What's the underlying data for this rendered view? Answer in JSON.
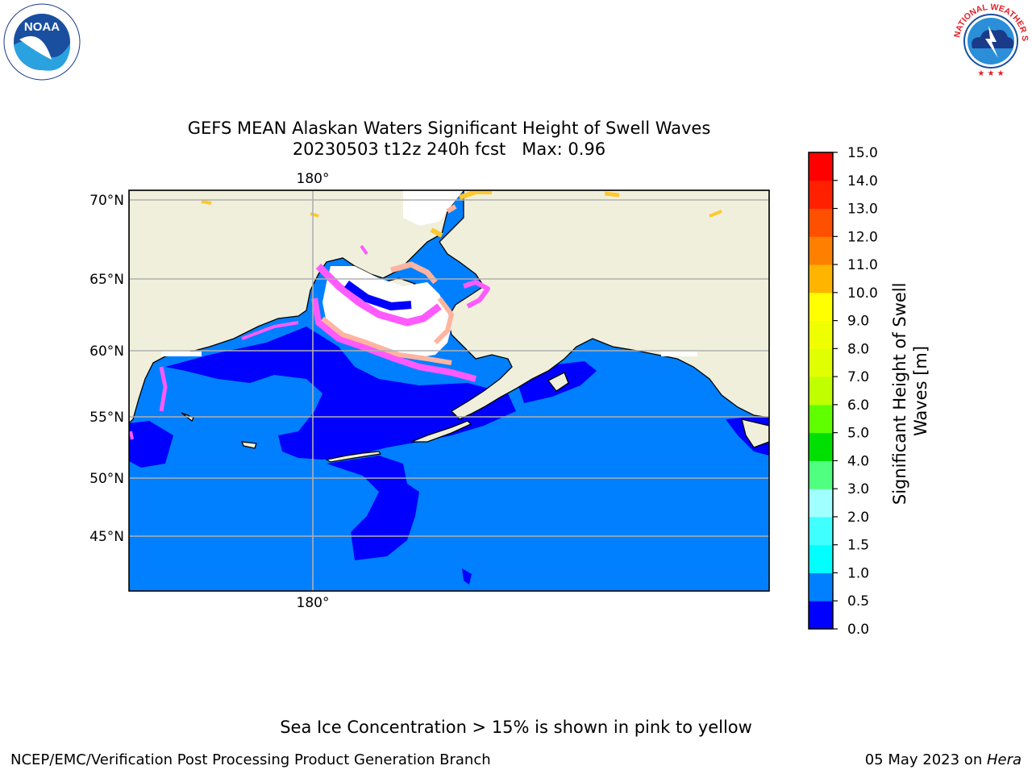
{
  "header": {
    "title_line1": "GEFS MEAN Alaskan Waters Significant Height of Swell Waves",
    "title_line2": "20230503 t12z 240h fcst   Max: 0.96",
    "logo_left_icon": "noaa-logo",
    "logo_left_text": "NOAA",
    "logo_right_icon": "national-weather-service-logo",
    "logo_right_text": "NATIONAL WEATHER SERVICE"
  },
  "map": {
    "lon_label_top": "180°",
    "lon_label_bottom": "180°",
    "lat_labels": [
      "70°N",
      "65°N",
      "60°N",
      "55°N",
      "50°N",
      "45°N"
    ],
    "colors": {
      "land": "#efefdc",
      "ocean_swell_0_5_to_1": "#0080ff",
      "ocean_swell_0_to_0_5": "#0000ff",
      "ice_low": "#ff5aff",
      "ice_mid": "#ffb4a0",
      "ice_high": "#ffc830",
      "gridline": "#b0b0b0"
    }
  },
  "colorbar": {
    "label_line1": "Significant Height of Swell",
    "label_line2": "Waves [m]",
    "ticks": [
      "0.0",
      "0.5",
      "1.0",
      "1.5",
      "2.0",
      "3.0",
      "4.0",
      "5.0",
      "6.0",
      "7.0",
      "8.0",
      "9.0",
      "10.0",
      "11.0",
      "12.0",
      "13.0",
      "14.0",
      "15.0"
    ],
    "colors": [
      "#0000ff",
      "#0080ff",
      "#00ffff",
      "#40ffff",
      "#a0ffff",
      "#50ff80",
      "#00e000",
      "#60ff00",
      "#c0ff00",
      "#e0ff00",
      "#f0ff00",
      "#ffff00",
      "#ffb400",
      "#ff8000",
      "#ff5000",
      "#ff2000",
      "#ff0000"
    ]
  },
  "footer": {
    "note": "Sea Ice Concentration > 15% is shown in pink to yellow",
    "left": "NCEP/EMC/Verification Post Processing Product Generation Branch",
    "right_prefix": "05 May 2023 on ",
    "right_italic": "Hera"
  }
}
